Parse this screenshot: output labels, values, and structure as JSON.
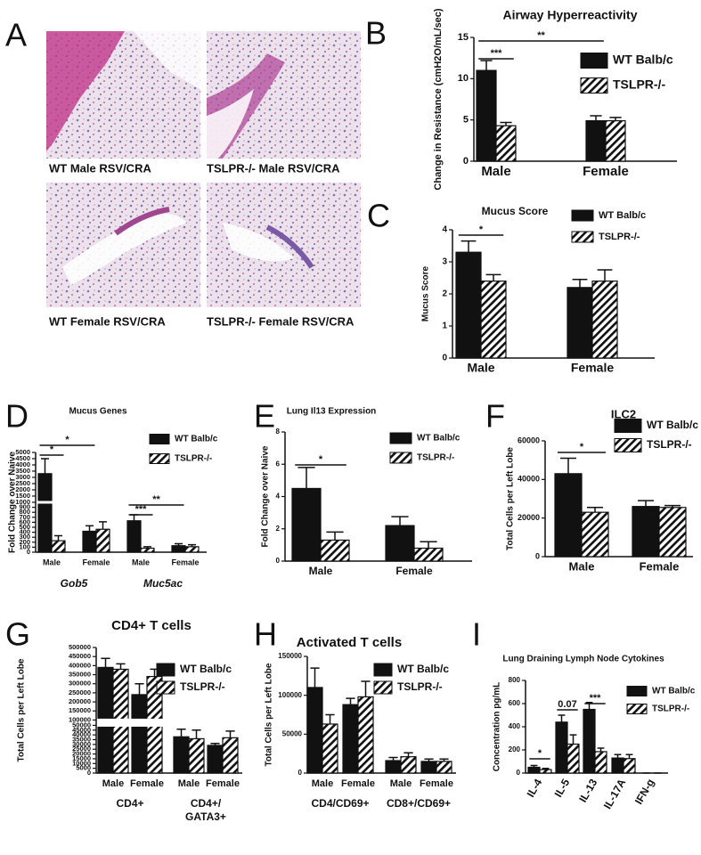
{
  "figure": {
    "letters": [
      "A",
      "B",
      "C",
      "D",
      "E",
      "F",
      "G",
      "H",
      "I"
    ],
    "images": [
      "WT Male RSV/CRA",
      "TSLPR-/- Male RSV/CRA",
      "WT Female RSV/CRA",
      "TSLPR-/- Female RSV/CRA"
    ]
  },
  "chart_data": [
    {
      "type": "bar",
      "title": "Airway Hyperreactivity",
      "ylabel": "Change in Resistance (cmH2O/mL/sec)",
      "categories": [
        "Male",
        "Female"
      ],
      "series": [
        {
          "name": "WT Balb/c",
          "color": "#111111",
          "fill": "solid",
          "values": [
            11,
            4.9
          ],
          "errors": [
            1.2,
            0.6
          ]
        },
        {
          "name": "TSLPR-/-",
          "color": "#111111",
          "fill": "hatch",
          "values": [
            4.3,
            4.9
          ],
          "errors": [
            0.4,
            0.4
          ]
        }
      ],
      "ylim": [
        0,
        15
      ],
      "yticks": [
        0,
        5,
        10,
        15
      ],
      "annotations": [
        "***",
        "**"
      ]
    },
    {
      "type": "bar",
      "title": "Mucus Score",
      "ylabel": "Mucus Score",
      "categories": [
        "Male",
        "Female"
      ],
      "series": [
        {
          "name": "WT Balb/c",
          "color": "#111111",
          "fill": "solid",
          "values": [
            3.3,
            2.2
          ],
          "errors": [
            0.35,
            0.25
          ]
        },
        {
          "name": "TSLPR-/-",
          "color": "#111111",
          "fill": "hatch",
          "values": [
            2.4,
            2.4
          ],
          "errors": [
            0.2,
            0.35
          ]
        }
      ],
      "ylim": [
        0,
        4
      ],
      "yticks": [
        0,
        1,
        2,
        3,
        4
      ],
      "annotations": [
        "*"
      ]
    },
    {
      "type": "bar",
      "title": "Mucus Genes",
      "ylabel": "Fold Change over Naive",
      "categories": [
        "Male",
        "Female",
        "Male",
        "Female"
      ],
      "groups": [
        [
          "Gob5"
        ],
        [
          "Muc5ac"
        ]
      ],
      "group_italic": true,
      "series": [
        {
          "name": "WT Balb/c",
          "color": "#111111",
          "fill": "solid",
          "values": [
            3300,
            420,
            630,
            130
          ],
          "errors": [
            1200,
            110,
            120,
            40
          ]
        },
        {
          "name": "TSLPR-/-",
          "color": "#111111",
          "fill": "hatch",
          "values": [
            230,
            460,
            80,
            110
          ],
          "errors": [
            100,
            150,
            30,
            40
          ]
        }
      ],
      "ylim": [
        0,
        5000
      ],
      "ybreak": [
        1000,
        1000
      ],
      "yticks": [
        0,
        100,
        200,
        300,
        400,
        500,
        600,
        700,
        800,
        900,
        1000,
        1500,
        2000,
        2500,
        3000,
        3500,
        4000,
        4500,
        5000
      ],
      "annotations": [
        "*",
        "*",
        "**",
        "***"
      ]
    },
    {
      "type": "bar",
      "title": "Lung Il13 Expression",
      "ylabel": "Fold Change over Naive",
      "categories": [
        "Male",
        "Female"
      ],
      "series": [
        {
          "name": "WT Balb/c",
          "color": "#111111",
          "fill": "solid",
          "values": [
            4.5,
            2.2
          ],
          "errors": [
            1.3,
            0.55
          ]
        },
        {
          "name": "TSLPR-/-",
          "color": "#111111",
          "fill": "hatch",
          "values": [
            1.3,
            0.8
          ],
          "errors": [
            0.5,
            0.4
          ]
        }
      ],
      "ylim": [
        0,
        8
      ],
      "yticks": [
        0,
        2,
        4,
        6,
        8
      ],
      "annotations": [
        "*"
      ]
    },
    {
      "type": "bar",
      "title": "ILC2",
      "ylabel": "Total Cells per Left Lobe",
      "categories": [
        "Male",
        "Female"
      ],
      "series": [
        {
          "name": "WT Balb/c",
          "color": "#111111",
          "fill": "solid",
          "values": [
            43000,
            26000
          ],
          "errors": [
            8000,
            3000
          ]
        },
        {
          "name": "TSLPR-/-",
          "color": "#111111",
          "fill": "hatch",
          "values": [
            23000,
            25500
          ],
          "errors": [
            2500,
            1000
          ]
        }
      ],
      "ylim": [
        0,
        60000
      ],
      "yticks": [
        0,
        20000,
        40000,
        60000
      ],
      "annotations": [
        "*"
      ]
    },
    {
      "type": "bar",
      "title": "CD4+ T cells",
      "ylabel": "Total Cells per Left Lobe",
      "categories": [
        "Male",
        "Female",
        "Male",
        "Female"
      ],
      "groups": [
        [
          "CD4+"
        ],
        [
          "CD4+/",
          "GATA3+"
        ]
      ],
      "series": [
        {
          "name": "WT Balb/c",
          "color": "#111111",
          "fill": "solid",
          "values": [
            390000,
            240000,
            38000,
            29000
          ],
          "errors": [
            50000,
            60000,
            8000,
            2000
          ]
        },
        {
          "name": "TSLPR-/-",
          "color": "#111111",
          "fill": "hatch",
          "values": [
            380000,
            340000,
            36000,
            37000
          ],
          "errors": [
            30000,
            40000,
            9000,
            7000
          ]
        }
      ],
      "ylim": [
        0,
        500000
      ],
      "ybreak": [
        50000,
        100000
      ],
      "yticks": [
        0,
        5000,
        10000,
        15000,
        20000,
        25000,
        30000,
        35000,
        40000,
        45000,
        50000,
        100000,
        150000,
        200000,
        250000,
        300000,
        350000,
        400000,
        450000,
        500000
      ]
    },
    {
      "type": "bar",
      "title": "Activated T cells",
      "ylabel": "Total Cells per Left Lobe",
      "categories": [
        "Male",
        "Female",
        "Male",
        "Female"
      ],
      "groups": [
        [
          "CD4/CD69+"
        ],
        [
          "CD8+/CD69+"
        ]
      ],
      "series": [
        {
          "name": "WT Balb/c",
          "color": "#111111",
          "fill": "solid",
          "values": [
            110000,
            88000,
            16000,
            15000
          ],
          "errors": [
            25000,
            8000,
            4000,
            3000
          ]
        },
        {
          "name": "TSLPR-/-",
          "color": "#111111",
          "fill": "hatch",
          "values": [
            63000,
            98000,
            21000,
            15000
          ],
          "errors": [
            12000,
            20000,
            5000,
            3000
          ]
        }
      ],
      "ylim": [
        0,
        150000
      ],
      "yticks": [
        0,
        50000,
        100000,
        150000
      ]
    },
    {
      "type": "bar",
      "title": "Lung Draining Lymph Node Cytokines",
      "ylabel": "Concentration pg/mL",
      "categories": [
        "IL-4",
        "IL-5",
        "IL-13",
        "IL-17A",
        "IFN-g"
      ],
      "series": [
        {
          "name": "WT Balb/c",
          "color": "#111111",
          "fill": "solid",
          "values": [
            50,
            440,
            550,
            130,
            0
          ],
          "errors": [
            15,
            60,
            60,
            30,
            0
          ]
        },
        {
          "name": "TSLPR-/-",
          "color": "#111111",
          "fill": "hatch",
          "values": [
            30,
            250,
            185,
            125,
            0
          ],
          "errors": [
            10,
            80,
            30,
            35,
            0
          ]
        }
      ],
      "ylim": [
        0,
        800
      ],
      "yticks": [
        0,
        200,
        400,
        600,
        800
      ],
      "annotations": [
        "*",
        "0.07",
        "***"
      ]
    }
  ]
}
